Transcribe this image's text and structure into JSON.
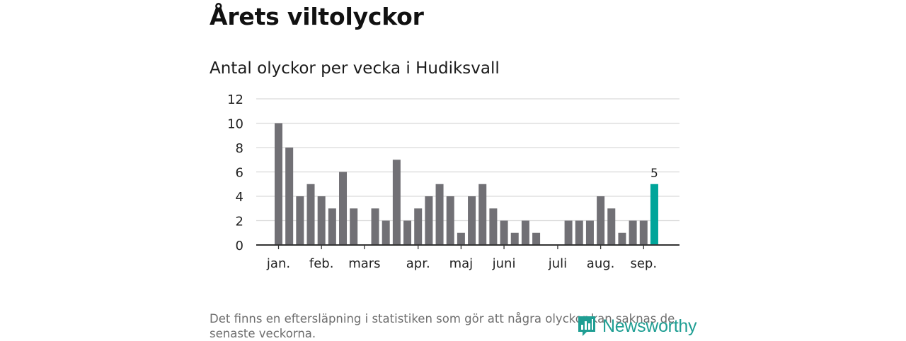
{
  "page": {
    "title": "Årets viltolyckor",
    "footnote": "Det finns en eftersläpning i statistiken som gör att några olyckor kan saknas de senaste veckorna.",
    "brand": "Newsworthy"
  },
  "colors": {
    "bar": "#717075",
    "highlight": "#00a59a",
    "grid": "#d9d9d9",
    "axis": "#333333",
    "brand": "#1f9e93"
  },
  "chart_data": {
    "type": "bar",
    "title": "Antal olyckor per vecka i Hudiksvall",
    "xlabel": "",
    "ylabel": "",
    "ylim": [
      0,
      12
    ],
    "yticks": [
      0,
      2,
      4,
      6,
      8,
      10,
      12
    ],
    "grid": true,
    "values": [
      10,
      8,
      4,
      5,
      4,
      3,
      6,
      3,
      0,
      3,
      2,
      7,
      2,
      3,
      4,
      5,
      4,
      1,
      4,
      5,
      3,
      2,
      1,
      2,
      1,
      0,
      0,
      2,
      2,
      2,
      4,
      3,
      1,
      2,
      2,
      5
    ],
    "highlight_index": 35,
    "highlight_label": "5",
    "month_labels": [
      {
        "label": "jan.",
        "at_bar": 0
      },
      {
        "label": "feb.",
        "at_bar": 4
      },
      {
        "label": "mars",
        "at_bar": 8
      },
      {
        "label": "apr.",
        "at_bar": 13
      },
      {
        "label": "maj",
        "at_bar": 17
      },
      {
        "label": "juni",
        "at_bar": 21
      },
      {
        "label": "juli",
        "at_bar": 26
      },
      {
        "label": "aug.",
        "at_bar": 30
      },
      {
        "label": "sep.",
        "at_bar": 34
      }
    ]
  }
}
